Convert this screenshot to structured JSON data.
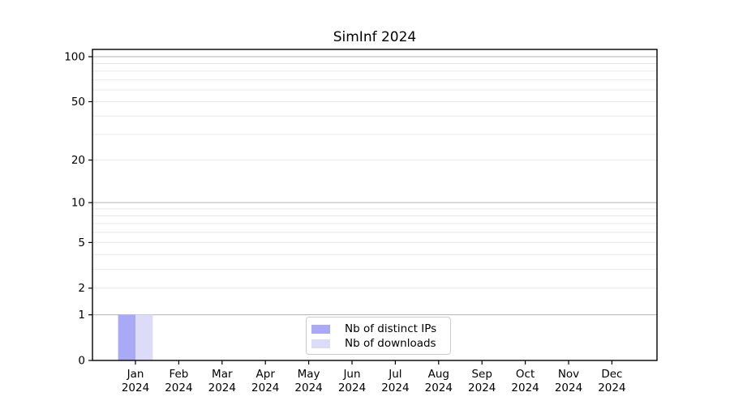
{
  "figure": {
    "background": "#ffffff"
  },
  "chart_data": {
    "type": "bar",
    "title": "SimInf 2024",
    "categories": [
      "Jan",
      "Feb",
      "Mar",
      "Apr",
      "May",
      "Jun",
      "Jul",
      "Aug",
      "Sep",
      "Oct",
      "Nov",
      "Dec"
    ],
    "category_year": "2024",
    "series": [
      {
        "name": "Nb of distinct IPs",
        "color": "#a9a9f6",
        "values": [
          1,
          0,
          0,
          0,
          0,
          0,
          0,
          0,
          0,
          0,
          0,
          0
        ]
      },
      {
        "name": "Nb of downloads",
        "color": "#dcdcf9",
        "values": [
          1,
          0,
          0,
          0,
          0,
          0,
          0,
          0,
          0,
          0,
          0,
          0
        ]
      }
    ],
    "yaxis": {
      "scale": "log1p",
      "ylim": [
        0,
        100
      ],
      "tick_values": [
        0,
        1,
        2,
        5,
        10,
        20,
        50,
        100
      ],
      "major_gridlines": [
        1,
        10,
        100
      ],
      "minor_gridlines": [
        2,
        3,
        4,
        5,
        6,
        7,
        8,
        9,
        20,
        30,
        40,
        50,
        60,
        70,
        80,
        90
      ]
    },
    "xlabel": "",
    "ylabel": "",
    "grid": true,
    "legend": {
      "position": "lower center",
      "entries": [
        "Nb of distinct IPs",
        "Nb of downloads"
      ]
    }
  },
  "colors": {
    "major_grid": "#b3b3b3",
    "minor_grid": "#e8e8e8",
    "spine": "#000000",
    "text": "#000000",
    "legend_border": "#cccccc",
    "background": "#ffffff"
  }
}
